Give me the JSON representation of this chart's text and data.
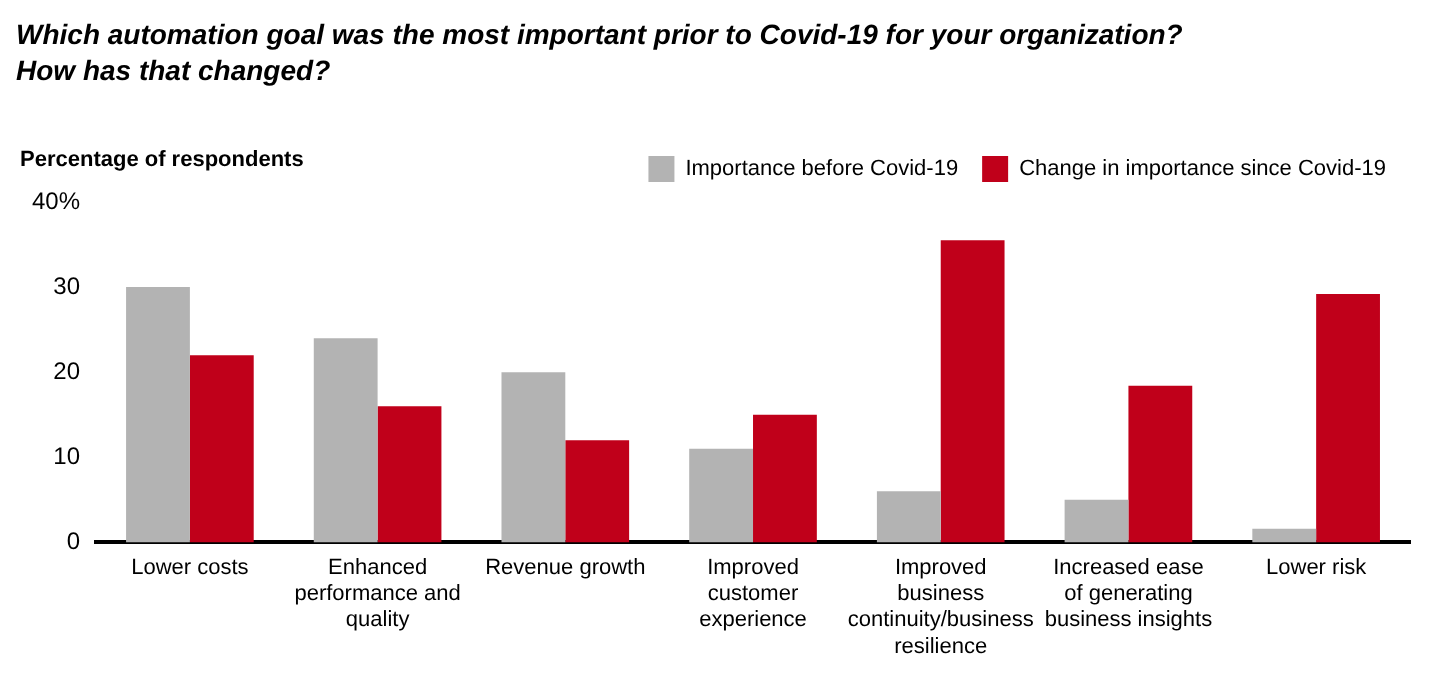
{
  "chart_data": {
    "type": "bar",
    "title": "Which automation goal was the most important prior to Covid-19 for your organization? How has that changed?",
    "ylabel": "Percentage of respondents",
    "categories": [
      "Lower costs",
      "Enhanced performance and quality",
      "Revenue growth",
      "Improved customer experience",
      "Improved business continuity/business resilience",
      "Increased ease of generating business insights",
      "Lower risk"
    ],
    "series": [
      {
        "name": "Importance before Covid-19",
        "color": "#b3b3b3",
        "values": [
          30,
          24,
          20,
          11,
          6,
          5,
          1.6
        ]
      },
      {
        "name": "Change in importance since Covid-19",
        "color": "#c0001a",
        "values": [
          22,
          16,
          12,
          15,
          35.5,
          18.4,
          29.2
        ]
      }
    ],
    "ylim": [
      0,
      40
    ],
    "yticks": [
      0,
      10,
      20,
      30,
      {
        "value": 40,
        "label": "40%"
      }
    ],
    "grid": false,
    "legend": "top right"
  }
}
